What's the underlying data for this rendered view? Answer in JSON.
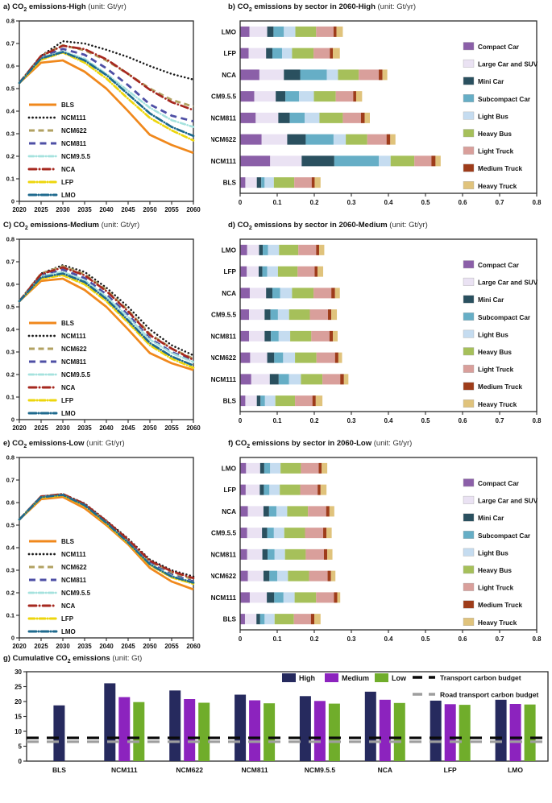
{
  "line_styles": [
    {
      "name": "BLS",
      "color": "#F0881C",
      "dash": "",
      "cap": "butt",
      "width": 2.7
    },
    {
      "name": "NCM111",
      "color": "#1A1A1A",
      "dash": "0.1 4.4",
      "cap": "round",
      "width": 2.5
    },
    {
      "name": "NCM622",
      "color": "#B2A262",
      "dash": "7 4.5",
      "cap": "butt",
      "width": 2.8
    },
    {
      "name": "NCM811",
      "color": "#4E4FA5",
      "dash": "8 5.5",
      "cap": "butt",
      "width": 2.8
    },
    {
      "name": "NCM9.5.5",
      "color": "#A5E2DE",
      "dash": "6 3 0.1 3",
      "cap": "round",
      "width": 2.6
    },
    {
      "name": "NCA",
      "color": "#A6281F",
      "dash": "9 4 0.1 4",
      "cap": "round",
      "width": 2.7
    },
    {
      "name": "LFP",
      "color": "#EDD60D",
      "dash": "7 3 0.1 3",
      "cap": "round",
      "width": 2.7
    },
    {
      "name": "LMO",
      "color": "#1F6A8E",
      "dash": "9 3 0.1 3",
      "cap": "round",
      "width": 2.7
    }
  ],
  "sectors": [
    {
      "name": "Compact Car",
      "color": "#8B5FA8"
    },
    {
      "name": "Large Car and SUV",
      "color": "#EAE2F3"
    },
    {
      "name": "Mini Car",
      "color": "#2A505F"
    },
    {
      "name": "Subcompact Car",
      "color": "#66AEC6"
    },
    {
      "name": "Light Bus",
      "color": "#C5DCF0"
    },
    {
      "name": "Heavy Bus",
      "color": "#A6C05A"
    },
    {
      "name": "Light Truck",
      "color": "#D99F9B"
    },
    {
      "name": "Medium Truck",
      "color": "#9E3C1A"
    },
    {
      "name": "Heavy Truck",
      "color": "#E0C37C"
    }
  ],
  "chart_data": [
    {
      "id": "a",
      "type": "line",
      "title": {
        "prefix": "a) CO",
        "sub": "2",
        "main": " emissions-High",
        "unit": " (unit: Gt/yr)"
      },
      "x": [
        2020,
        2025,
        2030,
        2035,
        2040,
        2045,
        2050,
        2055,
        2060
      ],
      "ylim": [
        0,
        0.8
      ],
      "ytick_step": 0.1,
      "legend_position": "lower-left",
      "grid": false,
      "series": [
        {
          "name": "BLS",
          "values": [
            0.525,
            0.615,
            0.625,
            0.575,
            0.5,
            0.4,
            0.295,
            0.25,
            0.215
          ]
        },
        {
          "name": "NCM111",
          "values": [
            0.525,
            0.645,
            0.71,
            0.7,
            0.672,
            0.64,
            0.6,
            0.565,
            0.54
          ]
        },
        {
          "name": "NCM622",
          "values": [
            0.525,
            0.645,
            0.692,
            0.67,
            0.625,
            0.565,
            0.5,
            0.45,
            0.42
          ]
        },
        {
          "name": "NCM811",
          "values": [
            0.525,
            0.64,
            0.676,
            0.65,
            0.59,
            0.515,
            0.43,
            0.38,
            0.355
          ]
        },
        {
          "name": "NCM9.5.5",
          "values": [
            0.525,
            0.638,
            0.665,
            0.632,
            0.565,
            0.49,
            0.415,
            0.36,
            0.33
          ]
        },
        {
          "name": "NCA",
          "values": [
            0.525,
            0.645,
            0.69,
            0.675,
            0.63,
            0.565,
            0.495,
            0.44,
            0.405
          ]
        },
        {
          "name": "LFP",
          "values": [
            0.525,
            0.628,
            0.66,
            0.615,
            0.545,
            0.455,
            0.37,
            0.315,
            0.27
          ]
        },
        {
          "name": "LMO",
          "values": [
            0.525,
            0.634,
            0.662,
            0.625,
            0.56,
            0.475,
            0.39,
            0.33,
            0.29
          ]
        }
      ]
    },
    {
      "id": "b",
      "type": "stacked-bar-h",
      "title": {
        "prefix": "b) CO",
        "sub": "2",
        "main": " emissions by sector in 2060-High",
        "unit": " (unit: Gt/yr)"
      },
      "categories": [
        "LMO",
        "LFP",
        "NCA",
        "NCM9.5.5",
        "NCM811",
        "NCM622",
        "NCM111",
        "BLS"
      ],
      "xlim": [
        0,
        0.8
      ],
      "xtick_step": 0.1,
      "legend_position": "right",
      "values": [
        [
          0.025,
          0.048,
          0.017,
          0.028,
          0.031,
          0.056,
          0.047,
          0.008,
          0.017
        ],
        [
          0.023,
          0.047,
          0.017,
          0.026,
          0.027,
          0.058,
          0.044,
          0.008,
          0.019
        ],
        [
          0.052,
          0.066,
          0.044,
          0.072,
          0.03,
          0.056,
          0.054,
          0.01,
          0.013
        ],
        [
          0.038,
          0.058,
          0.026,
          0.037,
          0.04,
          0.059,
          0.047,
          0.008,
          0.016
        ],
        [
          0.042,
          0.061,
          0.031,
          0.04,
          0.04,
          0.063,
          0.049,
          0.01,
          0.014
        ],
        [
          0.058,
          0.069,
          0.05,
          0.075,
          0.033,
          0.058,
          0.052,
          0.01,
          0.014
        ],
        [
          0.081,
          0.085,
          0.088,
          0.12,
          0.032,
          0.064,
          0.046,
          0.011,
          0.014
        ],
        [
          0.014,
          0.031,
          0.012,
          0.009,
          0.025,
          0.055,
          0.047,
          0.008,
          0.016
        ]
      ]
    },
    {
      "id": "c",
      "type": "line",
      "title": {
        "prefix": "C) CO",
        "sub": "2",
        "main": " emissions-Medium",
        "unit": " (unit: Gt/yr)"
      },
      "x": [
        2020,
        2025,
        2030,
        2035,
        2040,
        2045,
        2050,
        2055,
        2060
      ],
      "ylim": [
        0,
        0.8
      ],
      "ytick_step": 0.1,
      "legend_position": "lower-left",
      "grid": false,
      "series": [
        {
          "name": "BLS",
          "values": [
            0.525,
            0.615,
            0.625,
            0.575,
            0.5,
            0.4,
            0.295,
            0.25,
            0.22
          ]
        },
        {
          "name": "NCM111",
          "values": [
            0.525,
            0.648,
            0.685,
            0.655,
            0.585,
            0.5,
            0.4,
            0.33,
            0.285
          ]
        },
        {
          "name": "NCM622",
          "values": [
            0.525,
            0.648,
            0.68,
            0.645,
            0.575,
            0.485,
            0.38,
            0.315,
            0.27
          ]
        },
        {
          "name": "NCM811",
          "values": [
            0.525,
            0.64,
            0.665,
            0.628,
            0.555,
            0.465,
            0.36,
            0.3,
            0.26
          ]
        },
        {
          "name": "NCM9.5.5",
          "values": [
            0.525,
            0.636,
            0.655,
            0.618,
            0.545,
            0.455,
            0.355,
            0.295,
            0.255
          ]
        },
        {
          "name": "NCA",
          "values": [
            0.525,
            0.645,
            0.675,
            0.64,
            0.57,
            0.48,
            0.375,
            0.315,
            0.265
          ]
        },
        {
          "name": "LFP",
          "values": [
            0.525,
            0.625,
            0.64,
            0.6,
            0.525,
            0.43,
            0.33,
            0.27,
            0.23
          ]
        },
        {
          "name": "LMO",
          "values": [
            0.525,
            0.63,
            0.648,
            0.61,
            0.535,
            0.44,
            0.34,
            0.28,
            0.24
          ]
        }
      ]
    },
    {
      "id": "d",
      "type": "stacked-bar-h",
      "title": {
        "prefix": "d) CO",
        "sub": "2",
        "main": " emissions by sector in 2060-Medium",
        "unit": " (unit: Gt/yr)"
      },
      "categories": [
        "LMO",
        "LFP",
        "NCA",
        "NCM9.5.5",
        "NCM811",
        "NCM622",
        "NCM111",
        "BLS"
      ],
      "xlim": [
        0,
        0.8
      ],
      "xtick_step": 0.1,
      "legend_position": "right",
      "values": [
        [
          0.019,
          0.032,
          0.01,
          0.014,
          0.03,
          0.052,
          0.048,
          0.008,
          0.014
        ],
        [
          0.018,
          0.032,
          0.01,
          0.013,
          0.029,
          0.053,
          0.046,
          0.008,
          0.015
        ],
        [
          0.026,
          0.044,
          0.017,
          0.021,
          0.032,
          0.058,
          0.048,
          0.01,
          0.013
        ],
        [
          0.024,
          0.042,
          0.016,
          0.02,
          0.03,
          0.056,
          0.049,
          0.009,
          0.015
        ],
        [
          0.024,
          0.042,
          0.017,
          0.021,
          0.031,
          0.057,
          0.049,
          0.009,
          0.013
        ],
        [
          0.027,
          0.046,
          0.019,
          0.024,
          0.032,
          0.058,
          0.05,
          0.009,
          0.01
        ],
        [
          0.03,
          0.05,
          0.024,
          0.028,
          0.032,
          0.058,
          0.048,
          0.01,
          0.012
        ],
        [
          0.014,
          0.031,
          0.01,
          0.012,
          0.028,
          0.053,
          0.047,
          0.009,
          0.018
        ]
      ]
    },
    {
      "id": "e",
      "type": "line",
      "title": {
        "prefix": "e) CO",
        "sub": "2",
        "main": " emissions-Low",
        "unit": " (unit: Gt/yr)"
      },
      "x": [
        2020,
        2025,
        2030,
        2035,
        2040,
        2045,
        2050,
        2055,
        2060
      ],
      "ylim": [
        0,
        0.8
      ],
      "ytick_step": 0.1,
      "legend_position": "lower-left",
      "grid": false,
      "series": [
        {
          "name": "BLS",
          "values": [
            0.525,
            0.615,
            0.625,
            0.575,
            0.5,
            0.415,
            0.31,
            0.25,
            0.215
          ]
        },
        {
          "name": "NCM111",
          "values": [
            0.525,
            0.627,
            0.638,
            0.596,
            0.52,
            0.44,
            0.347,
            0.3,
            0.272
          ]
        },
        {
          "name": "NCM622",
          "values": [
            0.525,
            0.627,
            0.637,
            0.593,
            0.516,
            0.433,
            0.337,
            0.29,
            0.26
          ]
        },
        {
          "name": "NCM811",
          "values": [
            0.525,
            0.626,
            0.636,
            0.591,
            0.513,
            0.428,
            0.332,
            0.28,
            0.25
          ]
        },
        {
          "name": "NCM9.5.5",
          "values": [
            0.525,
            0.625,
            0.635,
            0.589,
            0.511,
            0.425,
            0.328,
            0.275,
            0.246
          ]
        },
        {
          "name": "NCA",
          "values": [
            0.525,
            0.627,
            0.638,
            0.594,
            0.518,
            0.436,
            0.342,
            0.295,
            0.265
          ]
        },
        {
          "name": "LFP",
          "values": [
            0.525,
            0.622,
            0.632,
            0.586,
            0.507,
            0.42,
            0.323,
            0.268,
            0.24
          ]
        },
        {
          "name": "LMO",
          "values": [
            0.525,
            0.624,
            0.634,
            0.588,
            0.51,
            0.423,
            0.326,
            0.272,
            0.245
          ]
        }
      ]
    },
    {
      "id": "f",
      "type": "stacked-bar-h",
      "title": {
        "prefix": "f) CO",
        "sub": "2",
        "main": " emissions by sector in 2060-Low",
        "unit": " (unit: Gt/yr)"
      },
      "categories": [
        "LMO",
        "LFP",
        "NCA",
        "NCM9.5.5",
        "NCM811",
        "NCM622",
        "NCM111",
        "BLS"
      ],
      "xlim": [
        0,
        0.8
      ],
      "xtick_step": 0.1,
      "legend_position": "right",
      "values": [
        [
          0.016,
          0.038,
          0.011,
          0.016,
          0.028,
          0.055,
          0.048,
          0.008,
          0.015
        ],
        [
          0.015,
          0.038,
          0.011,
          0.015,
          0.028,
          0.055,
          0.047,
          0.008,
          0.016
        ],
        [
          0.021,
          0.042,
          0.015,
          0.02,
          0.029,
          0.056,
          0.049,
          0.009,
          0.013
        ],
        [
          0.019,
          0.04,
          0.014,
          0.018,
          0.028,
          0.056,
          0.049,
          0.009,
          0.014
        ],
        [
          0.019,
          0.041,
          0.014,
          0.019,
          0.028,
          0.056,
          0.049,
          0.009,
          0.014
        ],
        [
          0.021,
          0.042,
          0.016,
          0.021,
          0.029,
          0.057,
          0.05,
          0.009,
          0.012
        ],
        [
          0.026,
          0.046,
          0.02,
          0.025,
          0.03,
          0.058,
          0.048,
          0.009,
          0.008
        ],
        [
          0.013,
          0.031,
          0.01,
          0.012,
          0.027,
          0.052,
          0.046,
          0.009,
          0.017
        ]
      ]
    },
    {
      "id": "g",
      "type": "grouped-bar",
      "title": {
        "prefix": "g) Cumulative CO",
        "sub": "2",
        "main": " emissions",
        "unit": " (unit: Gt)"
      },
      "categories": [
        "BLS",
        "NCM111",
        "NCM622",
        "NCM811",
        "NCM9.5.5",
        "NCA",
        "LFP",
        "LMO"
      ],
      "ylim": [
        0,
        30
      ],
      "ytick_step": 5,
      "legend_position": "top",
      "series": [
        {
          "name": "High",
          "color": "#262A5E",
          "values": [
            18.7,
            26.1,
            23.7,
            22.3,
            21.8,
            23.3,
            20.3,
            20.6
          ]
        },
        {
          "name": "Medium",
          "color": "#8C23BE",
          "values": [
            null,
            21.5,
            20.8,
            20.4,
            20.2,
            20.6,
            19.1,
            19.2
          ]
        },
        {
          "name": "Low",
          "color": "#70AD2B",
          "values": [
            null,
            19.8,
            19.6,
            19.4,
            19.3,
            19.5,
            18.9,
            19.0
          ]
        }
      ],
      "ref_lines": [
        {
          "name": "Transport carbon budget",
          "value": 7.8,
          "color": "#0A0A0A"
        },
        {
          "name": "Road transport carbon budget",
          "value": 6.5,
          "color": "#9E9E9E"
        }
      ]
    }
  ]
}
